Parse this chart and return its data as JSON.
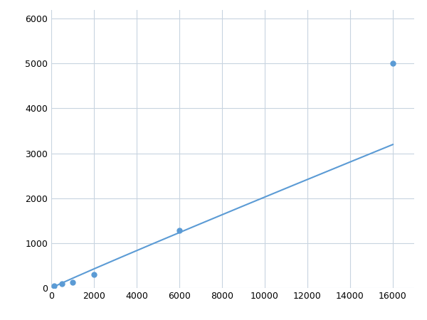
{
  "x": [
    125,
    500,
    1000,
    2000,
    6000,
    16000
  ],
  "y": [
    50,
    100,
    120,
    305,
    1275,
    5000
  ],
  "line_color": "#5b9bd5",
  "marker_color": "#5b9bd5",
  "marker_size": 5,
  "marker_style": "o",
  "line_width": 1.5,
  "xlim": [
    0,
    17000
  ],
  "ylim": [
    0,
    6200
  ],
  "xticks": [
    0,
    2000,
    4000,
    6000,
    8000,
    10000,
    12000,
    14000,
    16000
  ],
  "yticks": [
    0,
    1000,
    2000,
    3000,
    4000,
    5000,
    6000
  ],
  "grid": true,
  "grid_color": "#c8d4e0",
  "grid_linestyle": "-",
  "grid_linewidth": 0.8,
  "background_color": "#ffffff",
  "tick_labelsize": 9,
  "figsize": [
    6.0,
    4.5
  ],
  "dpi": 100
}
